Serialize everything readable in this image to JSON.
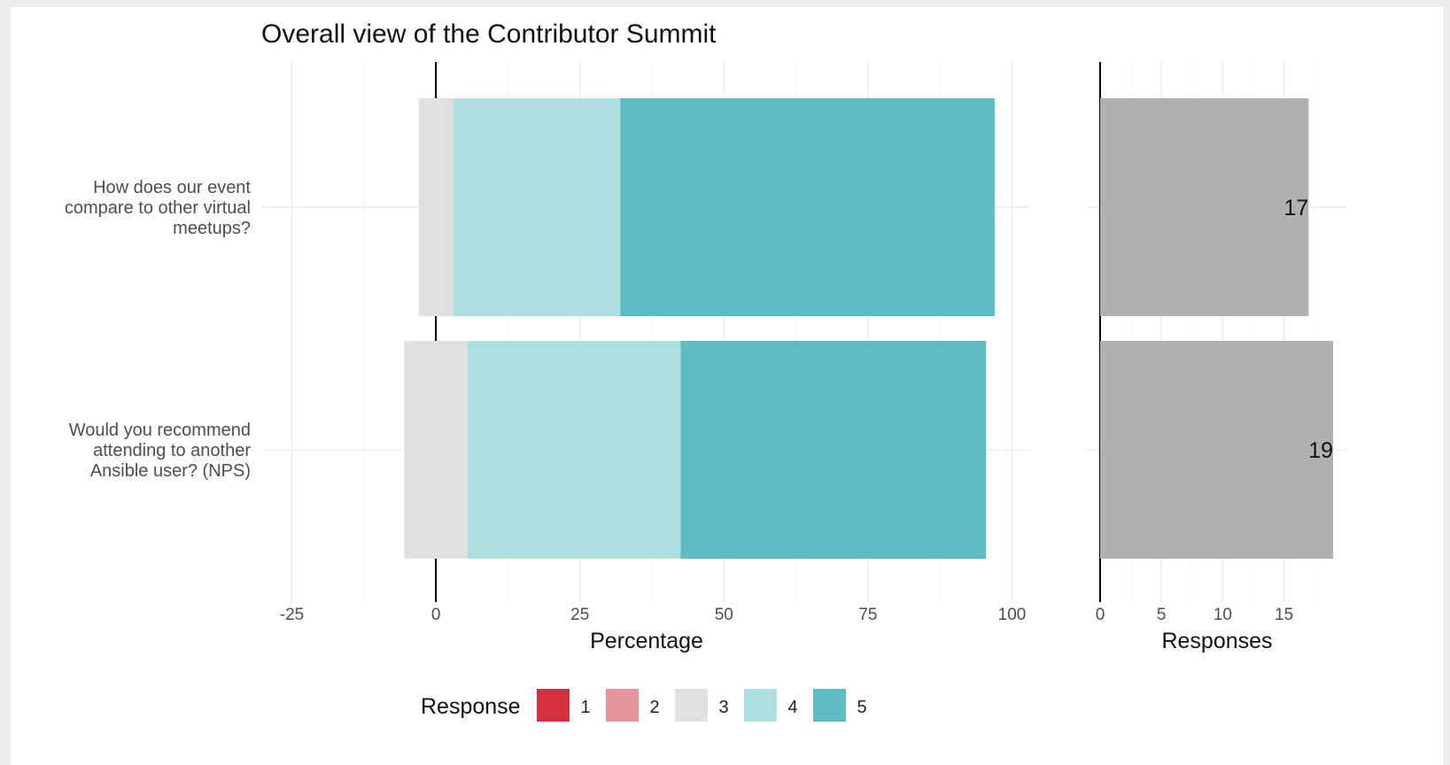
{
  "chart_data": {
    "type": "bar",
    "title": "Overall view of the Contributor Summit",
    "questions": [
      "How does our event compare to other virtual meetups?",
      "Would you recommend attending to another Ansible user? (NPS)"
    ],
    "question_lines": [
      [
        "How does our event",
        "compare to other virtual",
        "meetups?"
      ],
      [
        "Would you recommend",
        "attending to another",
        "Ansible user? (NPS)"
      ]
    ],
    "percentage_panel": {
      "xlabel": "Percentage",
      "xlim": [
        -30,
        103
      ],
      "ticks": [
        -25,
        0,
        25,
        50,
        75,
        100
      ],
      "series": [
        {
          "name": "3",
          "values": [
            6,
            11
          ]
        },
        {
          "name": "4",
          "values": [
            29,
            37
          ]
        },
        {
          "name": "5",
          "values": [
            65,
            53
          ]
        }
      ],
      "centering": "neutral response (3) centered on 0"
    },
    "responses_panel": {
      "xlabel": "Responses",
      "xlim": [
        0,
        19
      ],
      "ticks": [
        0,
        5,
        10,
        15
      ],
      "values": [
        17,
        19
      ],
      "value_labels": [
        "17",
        "19"
      ]
    },
    "legend": {
      "title": "Response",
      "position": "bottom",
      "items": [
        {
          "label": "1",
          "color": "#d1323e"
        },
        {
          "label": "2",
          "color": "#e6949a"
        },
        {
          "label": "3",
          "color": "#e0e0e0"
        },
        {
          "label": "4",
          "color": "#addfe0"
        },
        {
          "label": "5",
          "color": "#5dbcc1"
        }
      ]
    },
    "colors": {
      "count_bar": "#b0b0b0",
      "grid": "#ebebeb",
      "zero_line": "#000000"
    },
    "grid": true
  }
}
